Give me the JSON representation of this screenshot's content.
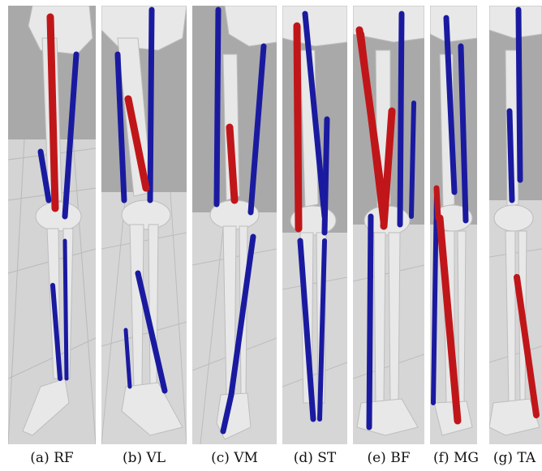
{
  "figure": {
    "panels": [
      {
        "caption": "(a) RF",
        "highlighted_muscle": "RF"
      },
      {
        "caption": "(b) VL",
        "highlighted_muscle": "VL"
      },
      {
        "caption": "(c) VM",
        "highlighted_muscle": "VM"
      },
      {
        "caption": "(d) ST",
        "highlighted_muscle": "ST"
      },
      {
        "caption": "(e) BF",
        "highlighted_muscle": "BF"
      },
      {
        "caption": "(f) MG",
        "highlighted_muscle": "MG"
      },
      {
        "caption": "(g) TA",
        "highlighted_muscle": "TA"
      }
    ],
    "colors": {
      "highlight_muscle": "#c0161a",
      "other_muscle": "#1a1aa0",
      "bone": "#e8e8e8",
      "background_upper": "#a9a9a9",
      "background_lower": "#d6d6d6"
    }
  }
}
